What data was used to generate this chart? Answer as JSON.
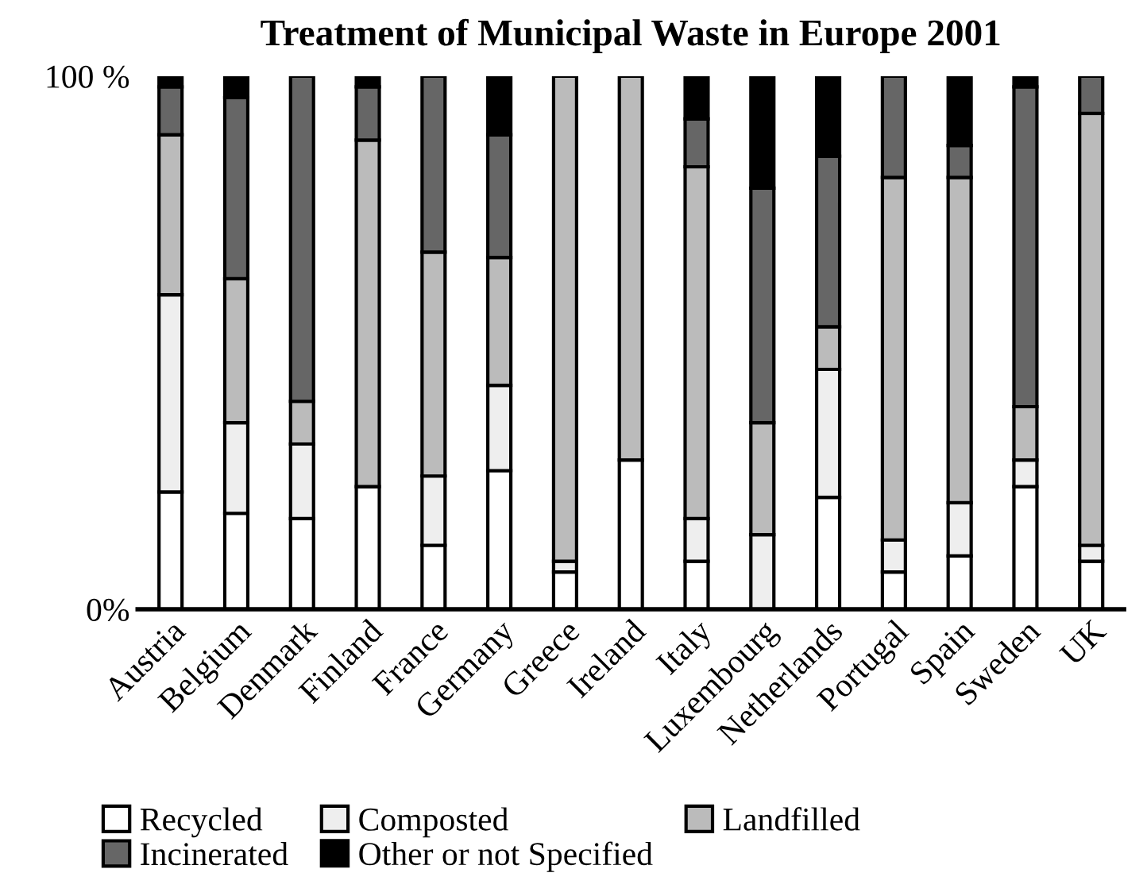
{
  "chart_data": {
    "type": "bar",
    "title": "Treatment of Municipal Waste in Europe 2001",
    "stacked": true,
    "categories": [
      "Austria",
      "Belgium",
      "Denmark",
      "Finland",
      "France",
      "Germany",
      "Greece",
      "Ireland",
      "Italy",
      "Luxembourg",
      "Netherlands",
      "Portugal",
      "Spain",
      "Sweden",
      "UK"
    ],
    "series": [
      {
        "name": "Recycled",
        "color": "#ffffff",
        "values": [
          22,
          18,
          17,
          23,
          12,
          26,
          7,
          28,
          9,
          null,
          21,
          7,
          10,
          23,
          9
        ]
      },
      {
        "name": "Composted",
        "color": "#eeeeee",
        "values": [
          37,
          17,
          14,
          0,
          13,
          16,
          2,
          0,
          8,
          14,
          24,
          6,
          10,
          5,
          3
        ]
      },
      {
        "name": "Landfilled",
        "color": "#bbbbbb",
        "values": [
          30,
          27,
          8,
          65,
          42,
          24,
          91,
          72,
          66,
          21,
          8,
          68,
          61,
          10,
          81
        ]
      },
      {
        "name": "Incinerated",
        "color": "#666666",
        "values": [
          9,
          34,
          61,
          10,
          33,
          23,
          0,
          0,
          9,
          44,
          32,
          19,
          6,
          60,
          7
        ]
      },
      {
        "name": "Other or not Specified",
        "color": "#000000",
        "values": [
          2,
          4,
          0,
          2,
          0,
          11,
          0,
          0,
          8,
          21,
          15,
          0,
          13,
          2,
          0
        ]
      }
    ],
    "ylim": [
      0,
      100
    ],
    "yticks": [
      {
        "value": 0,
        "label": "0%"
      },
      {
        "value": 100,
        "label": "100 %"
      }
    ],
    "grid": false,
    "legend": "bottom"
  }
}
